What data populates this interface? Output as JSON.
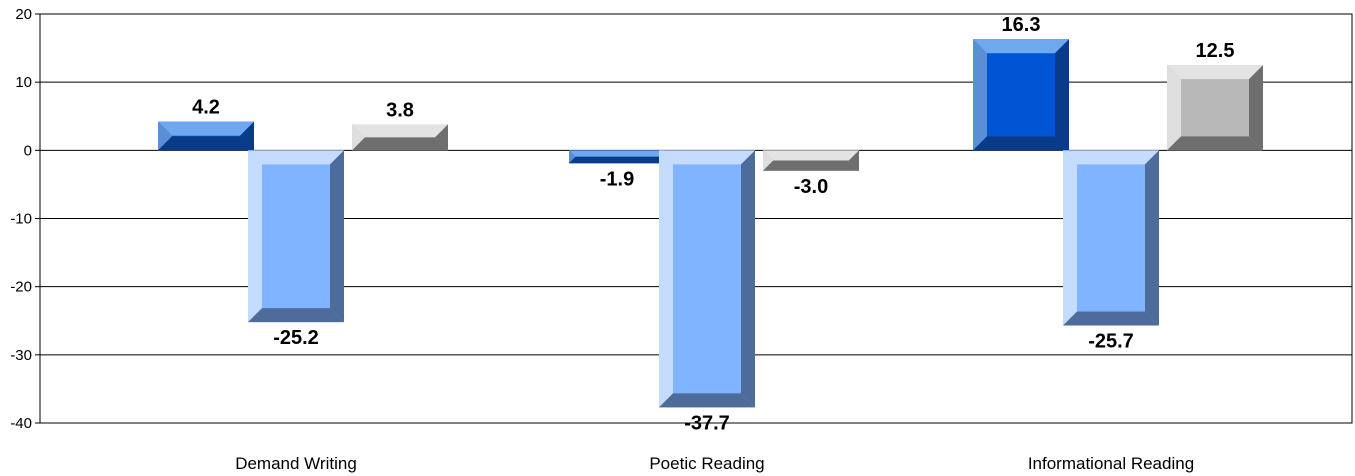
{
  "chart_data": {
    "type": "bar",
    "categories": [
      "Demand Writing",
      "Poetic Reading",
      "Informational Reading"
    ],
    "series": [
      {
        "values": [
          4.2,
          -1.9,
          16.3
        ]
      },
      {
        "values": [
          -25.2,
          -37.7,
          -25.7
        ]
      },
      {
        "values": [
          3.8,
          -3.0,
          12.5
        ]
      }
    ],
    "data_labels": [
      [
        "4.2",
        "-1.9",
        "16.3"
      ],
      [
        "-25.2",
        "-37.7",
        "-25.7"
      ],
      [
        "3.8",
        "-3.0",
        "12.5"
      ]
    ],
    "yticks": [
      20,
      10,
      0,
      -10,
      -20,
      -30,
      -40
    ],
    "ytick_labels": [
      "20",
      "10",
      "0",
      "-10",
      "-20",
      "-30",
      "-40"
    ],
    "ylim": [
      -40,
      20
    ],
    "title": "",
    "xlabel": "",
    "ylabel": "",
    "grid": true,
    "legend": false,
    "colors": {
      "series": [
        {
          "front": "#0055d4",
          "top": "#6ea8ef",
          "side": "#0a3a8a",
          "left": "#5a8fd6"
        },
        {
          "front": "#80b4ff",
          "top": "#c6dcff",
          "side": "#4d6c9c",
          "left": "#c6dcff"
        },
        {
          "front": "#b8b8b8",
          "top": "#e3e3e3",
          "side": "#6e6e6e",
          "left": "#dedede"
        }
      ]
    }
  }
}
